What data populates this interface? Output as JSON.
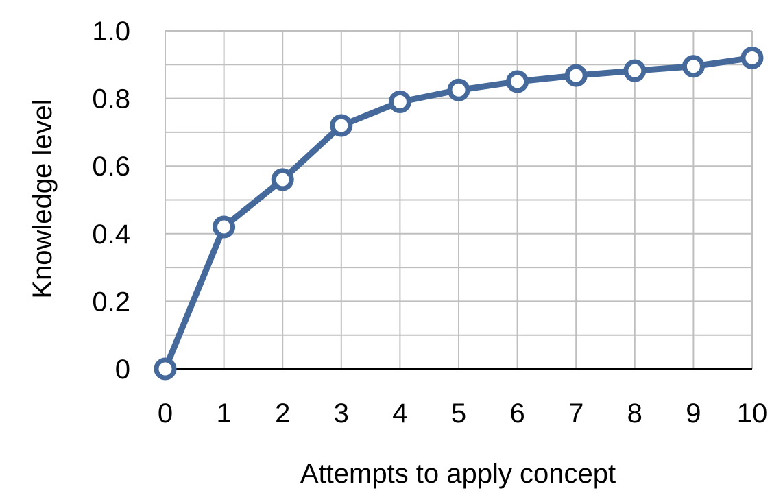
{
  "chart_data": {
    "type": "line",
    "title": "",
    "xlabel": "Attempts to apply concept",
    "ylabel": "Knowledge level",
    "x": [
      0,
      1,
      2,
      3,
      4,
      5,
      6,
      7,
      8,
      9,
      10
    ],
    "series": [
      {
        "values": [
          0,
          0.42,
          0.56,
          0.72,
          0.79,
          0.825,
          0.85,
          0.868,
          0.882,
          0.895,
          0.92
        ]
      }
    ],
    "xlim": [
      0,
      10
    ],
    "ylim": [
      0,
      1.0
    ],
    "x_ticks": [
      0,
      1,
      2,
      3,
      4,
      5,
      6,
      7,
      8,
      9,
      10
    ],
    "x_tick_labels": [
      "0",
      "1",
      "2",
      "3",
      "4",
      "5",
      "6",
      "7",
      "8",
      "9",
      "10"
    ],
    "y_ticks": [
      0,
      0.2,
      0.4,
      0.6,
      0.8,
      1.0
    ],
    "y_tick_labels": [
      "0",
      "0.2",
      "0.4",
      "0.6",
      "0.8",
      "1.0"
    ],
    "y_minor_grid_step": 0.1,
    "grid": true,
    "legend": "none",
    "colors": {
      "line": "#44699a",
      "marker_fill": "#ffffff",
      "grid": "#bfbfbf",
      "axis": "#000000"
    }
  }
}
